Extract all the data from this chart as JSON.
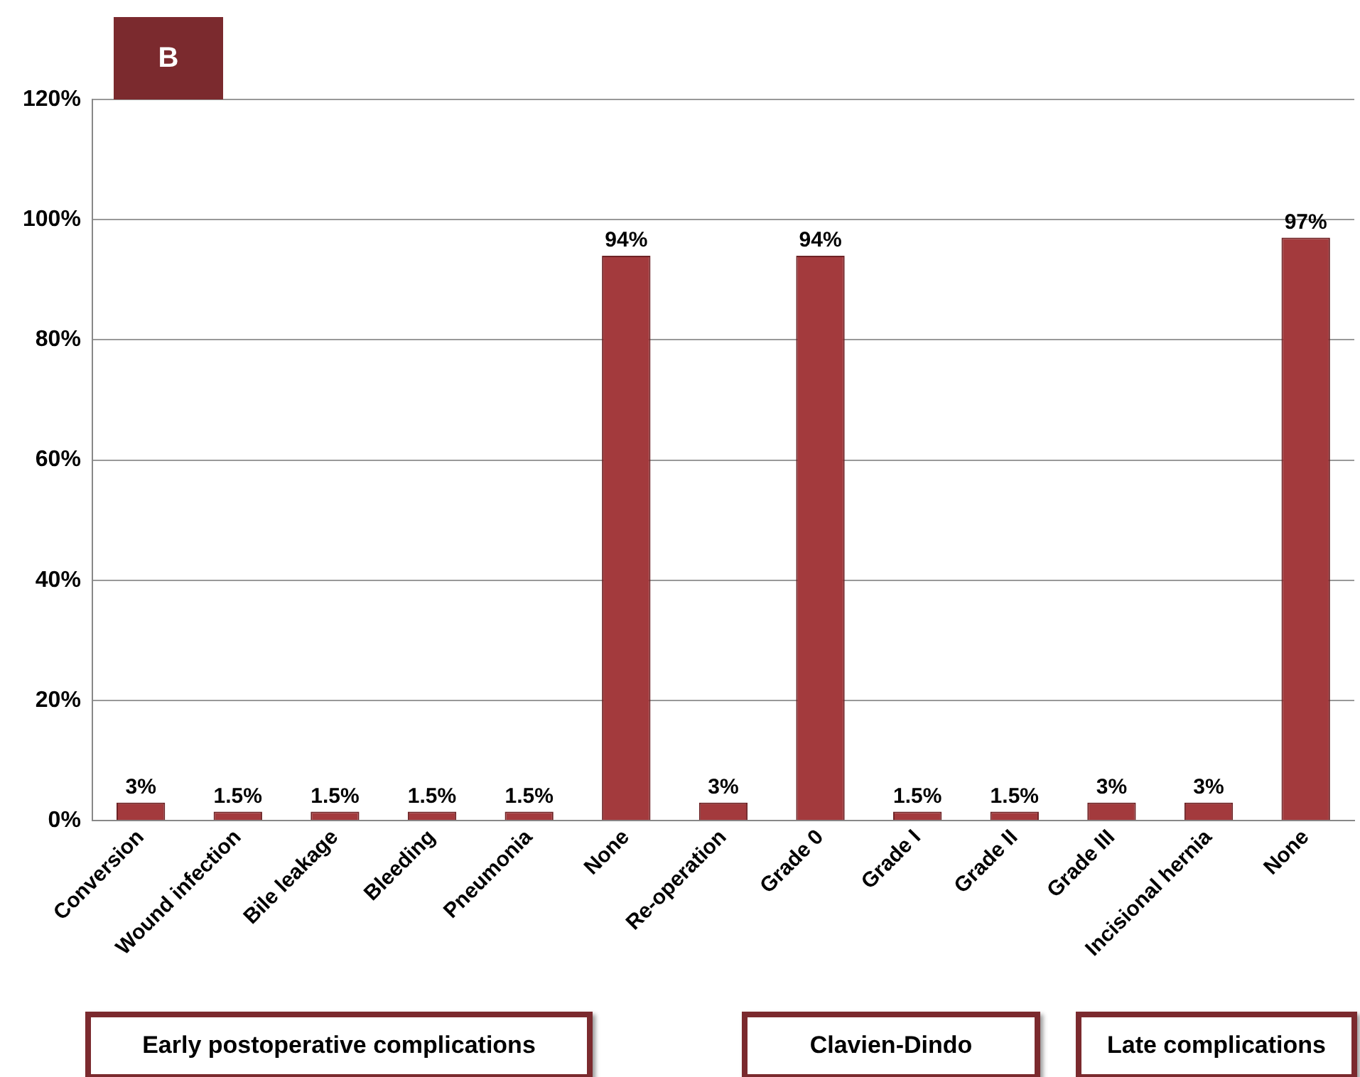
{
  "chart_data": {
    "type": "bar",
    "categories": [
      "Conversion",
      "Wound infection",
      "Bile leakage",
      "Bleeding",
      "Pneumonia",
      "None",
      "Re-operation",
      "Grade 0",
      "Grade I",
      "Grade II",
      "Grade III",
      "Incisional hernia",
      "None"
    ],
    "values": [
      3,
      1.5,
      1.5,
      1.5,
      1.5,
      94,
      3,
      94,
      1.5,
      1.5,
      3,
      3,
      97
    ],
    "value_labels": [
      "3%",
      "1.5%",
      "1.5%",
      "1.5%",
      "1.5%",
      "94%",
      "3%",
      "94%",
      "1.5%",
      "1.5%",
      "3%",
      "3%",
      "97%"
    ],
    "color": "#a33a3d",
    "ylim": [
      0,
      120
    ],
    "yticks": [
      {
        "value": 0,
        "label": "0%"
      },
      {
        "value": 20,
        "label": "20%"
      },
      {
        "value": 40,
        "label": "40%"
      },
      {
        "value": 60,
        "label": "60%"
      },
      {
        "value": 80,
        "label": "80%"
      },
      {
        "value": 100,
        "label": "100%"
      },
      {
        "value": 120,
        "label": "120%"
      }
    ],
    "grid": "y",
    "legend": false,
    "annotations": [
      "B",
      "Early postoperative complications",
      "Clavien-Dindo",
      "Late complications"
    ]
  }
}
